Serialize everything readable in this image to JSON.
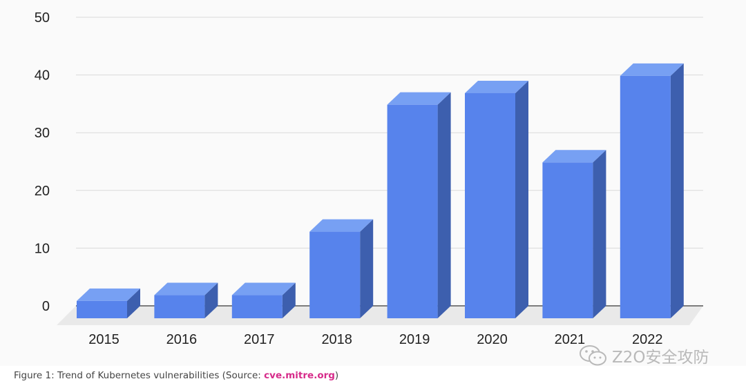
{
  "chart_data": {
    "type": "bar",
    "categories": [
      "2015",
      "2016",
      "2017",
      "2018",
      "2019",
      "2020",
      "2021",
      "2022"
    ],
    "values": [
      3,
      4,
      4,
      15,
      37,
      39,
      27,
      42
    ],
    "y_ticks": [
      "0",
      "10",
      "20",
      "30",
      "40",
      "50"
    ],
    "ylim": [
      0,
      50
    ],
    "grid": true,
    "style": "3d-bar",
    "colors": {
      "front": "#5783ec",
      "top": "#77a0f3",
      "side": "#3d5fae",
      "floor": "#e9e9e9",
      "grid": "#d9d9d9"
    }
  },
  "caption": {
    "prefix": "Figure 1: Trend of Kubernetes vulnerabilities (Source: ",
    "link": "cve.mitre.org",
    "suffix": ")"
  },
  "watermark": {
    "icon": "wechat-icon",
    "text": "Z2O安全攻防"
  }
}
